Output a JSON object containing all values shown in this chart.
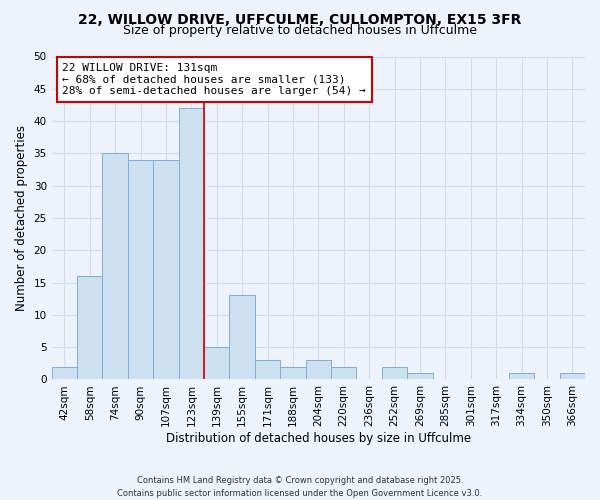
{
  "title_line1": "22, WILLOW DRIVE, UFFCULME, CULLOMPTON, EX15 3FR",
  "title_line2": "Size of property relative to detached houses in Uffculme",
  "xlabel": "Distribution of detached houses by size in Uffculme",
  "ylabel": "Number of detached properties",
  "bar_labels": [
    "42sqm",
    "58sqm",
    "74sqm",
    "90sqm",
    "107sqm",
    "123sqm",
    "139sqm",
    "155sqm",
    "171sqm",
    "188sqm",
    "204sqm",
    "220sqm",
    "236sqm",
    "252sqm",
    "269sqm",
    "285sqm",
    "301sqm",
    "317sqm",
    "334sqm",
    "350sqm",
    "366sqm"
  ],
  "bar_values": [
    2,
    16,
    35,
    34,
    34,
    42,
    5,
    13,
    3,
    2,
    3,
    2,
    0,
    2,
    1,
    0,
    0,
    0,
    1,
    0,
    1
  ],
  "bar_color": "#cce0f0",
  "bar_edge_color": "#7ab0d4",
  "vline_x": 5.5,
  "vline_color": "#cc0000",
  "annotation_text": "22 WILLOW DRIVE: 131sqm\n← 68% of detached houses are smaller (133)\n28% of semi-detached houses are larger (54) →",
  "annotation_box_color": "#ffffff",
  "annotation_box_edge": "#cc0000",
  "ylim": [
    0,
    50
  ],
  "yticks": [
    0,
    5,
    10,
    15,
    20,
    25,
    30,
    35,
    40,
    45,
    50
  ],
  "background_color": "#edf2fb",
  "footer_text": "Contains HM Land Registry data © Crown copyright and database right 2025.\nContains public sector information licensed under the Open Government Licence v3.0.",
  "grid_color": "#d0dce8",
  "title_fontsize": 10,
  "subtitle_fontsize": 9,
  "axis_label_fontsize": 8.5,
  "tick_fontsize": 7.5,
  "annotation_fontsize": 8
}
